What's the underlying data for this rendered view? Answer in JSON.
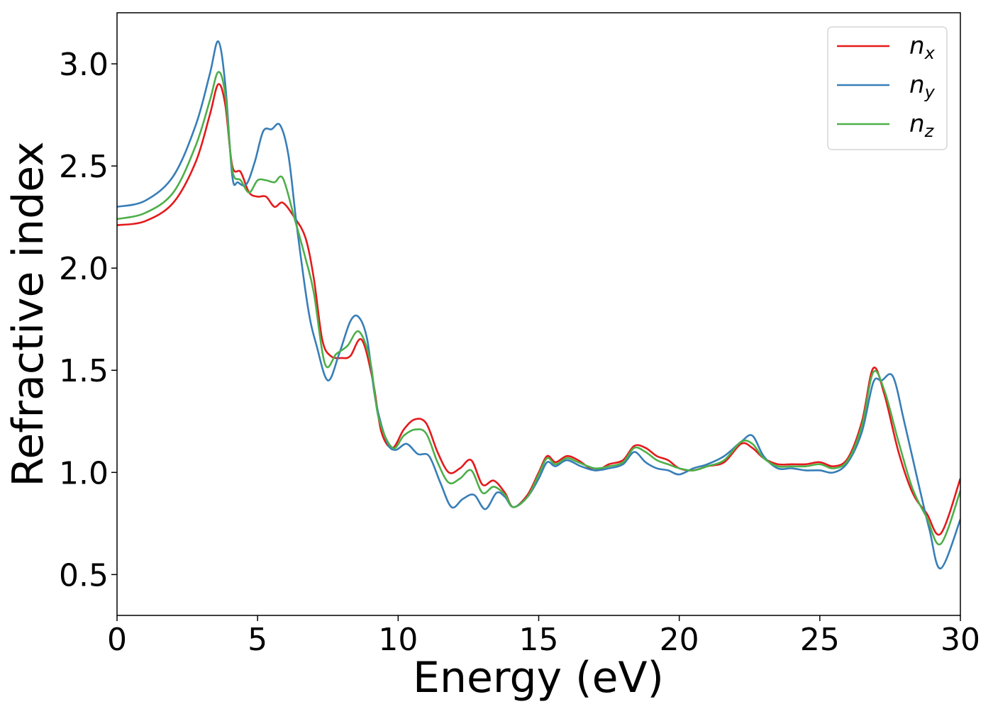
{
  "chart_data": {
    "type": "line",
    "title": "",
    "xlabel": "Energy (eV)",
    "ylabel": "Refractive index",
    "xlim": [
      0,
      30
    ],
    "ylim": [
      0.3,
      3.25
    ],
    "xticks": [
      0,
      5,
      10,
      15,
      20,
      25,
      30
    ],
    "xtick_labels": [
      "0",
      "5",
      "10",
      "15",
      "20",
      "25",
      "30"
    ],
    "yticks": [
      0.5,
      1.0,
      1.5,
      2.0,
      2.5,
      3.0
    ],
    "ytick_labels": [
      "0.5",
      "1.0",
      "1.5",
      "2.0",
      "2.5",
      "3.0"
    ],
    "grid": false,
    "legend_position": "top-right",
    "series": [
      {
        "name": "n_x",
        "label_base": "n",
        "label_sub": "x",
        "color": "#e41a1c",
        "points": [
          [
            0,
            2.21
          ],
          [
            1,
            2.23
          ],
          [
            2,
            2.32
          ],
          [
            2.8,
            2.52
          ],
          [
            3.3,
            2.75
          ],
          [
            3.6,
            2.9
          ],
          [
            3.85,
            2.8
          ],
          [
            4.1,
            2.5
          ],
          [
            4.4,
            2.47
          ],
          [
            4.7,
            2.37
          ],
          [
            5.0,
            2.35
          ],
          [
            5.3,
            2.35
          ],
          [
            5.6,
            2.3
          ],
          [
            5.9,
            2.32
          ],
          [
            6.3,
            2.25
          ],
          [
            6.7,
            2.15
          ],
          [
            7.0,
            1.95
          ],
          [
            7.3,
            1.65
          ],
          [
            7.6,
            1.57
          ],
          [
            8.0,
            1.56
          ],
          [
            8.3,
            1.57
          ],
          [
            8.7,
            1.65
          ],
          [
            9.1,
            1.45
          ],
          [
            9.4,
            1.2
          ],
          [
            9.8,
            1.12
          ],
          [
            10.2,
            1.21
          ],
          [
            10.6,
            1.26
          ],
          [
            11.0,
            1.24
          ],
          [
            11.4,
            1.1
          ],
          [
            11.8,
            1.0
          ],
          [
            12.2,
            1.02
          ],
          [
            12.6,
            1.06
          ],
          [
            13.0,
            0.94
          ],
          [
            13.4,
            0.96
          ],
          [
            13.8,
            0.9
          ],
          [
            14.1,
            0.83
          ],
          [
            14.6,
            0.89
          ],
          [
            15.0,
            1.0
          ],
          [
            15.3,
            1.08
          ],
          [
            15.6,
            1.05
          ],
          [
            16.0,
            1.08
          ],
          [
            16.4,
            1.06
          ],
          [
            17.0,
            1.01
          ],
          [
            17.5,
            1.04
          ],
          [
            18.0,
            1.06
          ],
          [
            18.4,
            1.13
          ],
          [
            18.8,
            1.12
          ],
          [
            19.2,
            1.08
          ],
          [
            19.6,
            1.06
          ],
          [
            20.0,
            1.02
          ],
          [
            20.5,
            1.01
          ],
          [
            21.0,
            1.03
          ],
          [
            21.6,
            1.05
          ],
          [
            22.2,
            1.14
          ],
          [
            22.6,
            1.12
          ],
          [
            23.0,
            1.07
          ],
          [
            23.5,
            1.04
          ],
          [
            24.0,
            1.04
          ],
          [
            24.5,
            1.04
          ],
          [
            25.0,
            1.05
          ],
          [
            25.5,
            1.03
          ],
          [
            26.0,
            1.07
          ],
          [
            26.5,
            1.25
          ],
          [
            26.9,
            1.51
          ],
          [
            27.3,
            1.38
          ],
          [
            27.8,
            1.1
          ],
          [
            28.3,
            0.9
          ],
          [
            28.8,
            0.8
          ],
          [
            29.3,
            0.7
          ],
          [
            30,
            0.97
          ]
        ]
      },
      {
        "name": "n_y",
        "label_base": "n",
        "label_sub": "y",
        "color": "#377eb8",
        "points": [
          [
            0,
            2.3
          ],
          [
            1,
            2.33
          ],
          [
            2,
            2.45
          ],
          [
            2.8,
            2.7
          ],
          [
            3.3,
            2.95
          ],
          [
            3.6,
            3.11
          ],
          [
            3.85,
            2.9
          ],
          [
            4.1,
            2.45
          ],
          [
            4.3,
            2.42
          ],
          [
            4.6,
            2.41
          ],
          [
            4.9,
            2.52
          ],
          [
            5.2,
            2.67
          ],
          [
            5.5,
            2.68
          ],
          [
            5.8,
            2.7
          ],
          [
            6.1,
            2.55
          ],
          [
            6.4,
            2.2
          ],
          [
            6.8,
            1.8
          ],
          [
            7.1,
            1.62
          ],
          [
            7.5,
            1.45
          ],
          [
            7.9,
            1.58
          ],
          [
            8.3,
            1.74
          ],
          [
            8.6,
            1.76
          ],
          [
            8.9,
            1.65
          ],
          [
            9.2,
            1.35
          ],
          [
            9.6,
            1.15
          ],
          [
            9.9,
            1.11
          ],
          [
            10.3,
            1.14
          ],
          [
            10.7,
            1.09
          ],
          [
            11.1,
            1.08
          ],
          [
            11.5,
            0.95
          ],
          [
            11.9,
            0.83
          ],
          [
            12.3,
            0.87
          ],
          [
            12.7,
            0.89
          ],
          [
            13.1,
            0.82
          ],
          [
            13.5,
            0.9
          ],
          [
            13.8,
            0.88
          ],
          [
            14.1,
            0.83
          ],
          [
            14.6,
            0.88
          ],
          [
            15.0,
            0.97
          ],
          [
            15.3,
            1.05
          ],
          [
            15.6,
            1.03
          ],
          [
            16.0,
            1.06
          ],
          [
            16.5,
            1.03
          ],
          [
            17.0,
            1.01
          ],
          [
            17.5,
            1.02
          ],
          [
            18.0,
            1.04
          ],
          [
            18.4,
            1.1
          ],
          [
            18.8,
            1.05
          ],
          [
            19.2,
            1.02
          ],
          [
            19.6,
            1.01
          ],
          [
            20.0,
            0.99
          ],
          [
            20.5,
            1.02
          ],
          [
            21.0,
            1.04
          ],
          [
            21.6,
            1.08
          ],
          [
            22.2,
            1.15
          ],
          [
            22.6,
            1.18
          ],
          [
            23.0,
            1.08
          ],
          [
            23.5,
            1.02
          ],
          [
            24.0,
            1.02
          ],
          [
            24.5,
            1.01
          ],
          [
            25.0,
            1.01
          ],
          [
            25.5,
            1.0
          ],
          [
            26.0,
            1.05
          ],
          [
            26.5,
            1.2
          ],
          [
            26.9,
            1.44
          ],
          [
            27.2,
            1.45
          ],
          [
            27.6,
            1.47
          ],
          [
            28.0,
            1.25
          ],
          [
            28.5,
            0.95
          ],
          [
            28.9,
            0.72
          ],
          [
            29.3,
            0.53
          ],
          [
            30,
            0.77
          ]
        ]
      },
      {
        "name": "n_z",
        "label_base": "n",
        "label_sub": "z",
        "color": "#4daf4a",
        "points": [
          [
            0,
            2.24
          ],
          [
            1,
            2.27
          ],
          [
            2,
            2.37
          ],
          [
            2.8,
            2.6
          ],
          [
            3.3,
            2.82
          ],
          [
            3.6,
            2.96
          ],
          [
            3.85,
            2.85
          ],
          [
            4.1,
            2.48
          ],
          [
            4.4,
            2.43
          ],
          [
            4.7,
            2.37
          ],
          [
            5.0,
            2.43
          ],
          [
            5.3,
            2.43
          ],
          [
            5.6,
            2.42
          ],
          [
            5.9,
            2.44
          ],
          [
            6.3,
            2.25
          ],
          [
            6.7,
            2.05
          ],
          [
            7.0,
            1.88
          ],
          [
            7.4,
            1.53
          ],
          [
            7.8,
            1.58
          ],
          [
            8.2,
            1.62
          ],
          [
            8.6,
            1.69
          ],
          [
            9.0,
            1.55
          ],
          [
            9.3,
            1.27
          ],
          [
            9.8,
            1.12
          ],
          [
            10.2,
            1.18
          ],
          [
            10.6,
            1.21
          ],
          [
            11.0,
            1.19
          ],
          [
            11.4,
            1.05
          ],
          [
            11.8,
            0.95
          ],
          [
            12.2,
            0.97
          ],
          [
            12.6,
            1.01
          ],
          [
            13.0,
            0.9
          ],
          [
            13.4,
            0.93
          ],
          [
            13.8,
            0.89
          ],
          [
            14.1,
            0.83
          ],
          [
            14.6,
            0.88
          ],
          [
            15.0,
            0.99
          ],
          [
            15.3,
            1.07
          ],
          [
            15.6,
            1.04
          ],
          [
            16.0,
            1.07
          ],
          [
            16.4,
            1.05
          ],
          [
            17.0,
            1.02
          ],
          [
            17.5,
            1.03
          ],
          [
            18.0,
            1.05
          ],
          [
            18.4,
            1.12
          ],
          [
            18.8,
            1.1
          ],
          [
            19.2,
            1.06
          ],
          [
            19.6,
            1.04
          ],
          [
            20.0,
            1.02
          ],
          [
            20.5,
            1.01
          ],
          [
            21.0,
            1.03
          ],
          [
            21.6,
            1.06
          ],
          [
            22.2,
            1.15
          ],
          [
            22.6,
            1.14
          ],
          [
            23.0,
            1.07
          ],
          [
            23.5,
            1.03
          ],
          [
            24.0,
            1.03
          ],
          [
            24.5,
            1.03
          ],
          [
            25.0,
            1.04
          ],
          [
            25.5,
            1.02
          ],
          [
            26.0,
            1.06
          ],
          [
            26.5,
            1.23
          ],
          [
            26.9,
            1.49
          ],
          [
            27.3,
            1.4
          ],
          [
            27.8,
            1.15
          ],
          [
            28.3,
            0.92
          ],
          [
            28.8,
            0.78
          ],
          [
            29.3,
            0.65
          ],
          [
            30,
            0.91
          ]
        ]
      }
    ]
  }
}
